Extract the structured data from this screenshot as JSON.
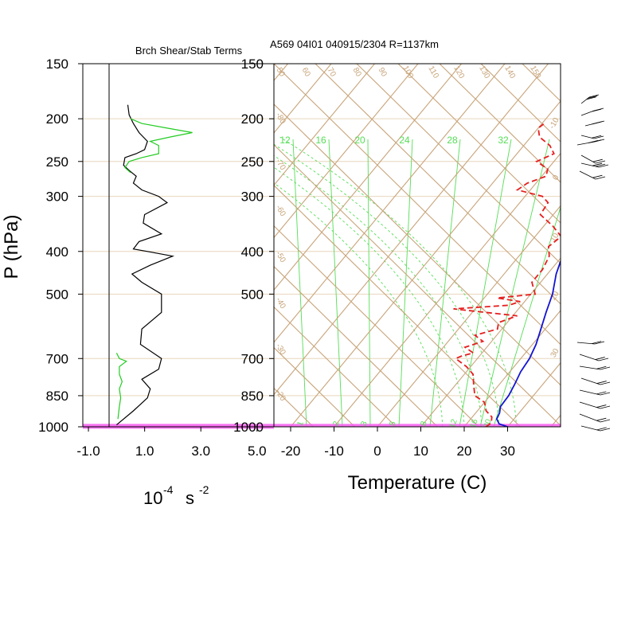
{
  "header": {
    "left_title": "Brch Shear/Stab Terms",
    "right_title": "A569 04I01 040915/2304 R=1137km"
  },
  "y_axis": {
    "label": "P (hPa)",
    "ticks": [
      150,
      200,
      250,
      300,
      400,
      500,
      700,
      850,
      1000
    ]
  },
  "left_panel": {
    "x_ticks": [
      "-1.0",
      "1.0",
      "3.0",
      "5.0"
    ],
    "x_unit_base": "10",
    "x_unit_exp": "-4",
    "x_unit_s": "s",
    "x_unit_exp2": "-2"
  },
  "right_panel": {
    "x_ticks": [
      "-20",
      "-10",
      "0",
      "10",
      "20",
      "30"
    ],
    "x_label": "Temperature (C)",
    "mixing_ratio_labels_top": [
      "12",
      "16",
      "20",
      "24",
      "28",
      "32"
    ],
    "mixing_ratio_labels_bottom": [
      "1",
      "2",
      "3",
      "5",
      "8",
      "12",
      "16",
      "20"
    ],
    "dry_adiabat_labels": [
      "50",
      "60",
      "70",
      "80",
      "90",
      "100",
      "110",
      "120",
      "130",
      "140",
      "150"
    ],
    "moist_adiabat_labels": [
      "20",
      "30",
      "40",
      "50"
    ],
    "isotherm_labels": [
      "-80",
      "-70",
      "-60",
      "-50",
      "-40",
      "-30",
      "-20"
    ]
  },
  "colors": {
    "temperature": "#1414d2",
    "dewpoint": "#e61e1e",
    "shear_black": "#000000",
    "shear_green": "#22cc22",
    "grid_tan": "#c8a47a",
    "mixing_ratio": "#55dd55",
    "surface_band": "#f75cf0",
    "pressure_lines": "#e8d6bc"
  },
  "chart_data": [
    {
      "type": "line",
      "title": "Brch Shear/Stab Terms",
      "xlabel": "10-4 s -2",
      "ylabel": "P (hPa)",
      "xlim": [
        -1.0,
        5.0
      ],
      "ylim": [
        1000,
        150
      ],
      "yscale": "log-pressure",
      "series": [
        {
          "values_x": [
            0.4,
            0.45,
            0.6,
            0.8,
            1.1,
            1.0,
            0.7,
            0.3,
            0.25,
            0.45,
            0.7,
            0.6,
            0.9,
            1.5,
            1.8,
            1.0,
            0.95,
            1.6,
            0.8,
            0.6,
            1.1,
            2.0,
            1.2,
            0.55,
            0.9,
            1.6,
            1.6,
            0.9,
            0.85,
            1.6,
            1.5,
            0.9,
            1.2,
            1.1,
            0.6,
            0.0
          ],
          "values_p": [
            186,
            196,
            205,
            215,
            225,
            235,
            240,
            245,
            255,
            262,
            270,
            280,
            290,
            300,
            310,
            330,
            345,
            365,
            380,
            395,
            400,
            410,
            430,
            450,
            470,
            500,
            550,
            600,
            650,
            700,
            740,
            780,
            820,
            860,
            920,
            990
          ]
        },
        {
          "values_x": [
            0.5,
            0.9,
            1.8,
            2.7,
            1.9,
            1.2,
            1.5,
            1.5,
            0.9,
            0.45,
            0.3,
            0.5
          ],
          "values_p": [
            200,
            205,
            210,
            215,
            220,
            225,
            230,
            240,
            245,
            250,
            258,
            265
          ]
        },
        {
          "values_x": [
            0.0,
            0.1,
            0.35,
            0.1,
            0.1,
            0.2,
            0.1,
            0.15,
            0.1,
            0.05
          ],
          "values_p": [
            680,
            700,
            710,
            730,
            760,
            790,
            820,
            860,
            900,
            960
          ]
        }
      ]
    },
    {
      "type": "line",
      "title": "A569 04I01 040915/2304 R=1137km",
      "xlabel": "Temperature (C)",
      "ylabel": "P (hPa)",
      "xlim": [
        -25,
        40
      ],
      "ylim": [
        1000,
        150
      ],
      "grid": "skew-T log-P",
      "series": [
        {
          "name": "temperature",
          "p": [
            1000,
            985,
            960,
            930,
            900,
            850,
            800,
            750,
            700,
            650,
            600,
            550,
            500,
            450,
            400,
            350,
            330,
            300,
            280,
            260,
            250,
            240,
            230,
            220,
            210,
            200,
            190,
            180
          ],
          "t": [
            30.0,
            27.5,
            26.0,
            25.5,
            24.5,
            24.3,
            23.5,
            22.5,
            22.0,
            20.8,
            19.0,
            17.0,
            15.0,
            12.0,
            9.5,
            6.0,
            4.5,
            2.5,
            0.5,
            -1.0,
            -2.0,
            -3.0,
            -4.2,
            -5.3,
            -6.5,
            -8.0,
            -9.5,
            -11.5
          ]
        },
        {
          "name": "dewpoint",
          "p": [
            1000,
            980,
            950,
            920,
            880,
            850,
            800,
            760,
            730,
            700,
            690,
            680,
            660,
            640,
            620,
            600,
            580,
            560,
            550,
            540,
            530,
            520,
            510,
            500,
            470,
            440,
            410,
            390,
            370,
            350,
            330,
            310,
            300,
            290,
            280,
            270,
            260,
            250,
            240,
            230,
            220,
            210,
            205
          ],
          "td": [
            25.0,
            25.5,
            24.5,
            22.0,
            20.0,
            16.5,
            14.0,
            12.0,
            9.0,
            5.0,
            6.0,
            8.0,
            5.0,
            8.0,
            5.0,
            9.0,
            8.0,
            11.0,
            3.0,
            -5.0,
            7.0,
            9.0,
            3.0,
            11.0,
            8.0,
            8.0,
            7.0,
            5.0,
            6.0,
            2.0,
            -3.0,
            -3.5,
            -6.0,
            -13.0,
            -12.0,
            -9.0,
            -10.0,
            -14.0,
            -11.5,
            -14.0,
            -18.0,
            -20.0,
            -19.5
          ]
        }
      ]
    }
  ]
}
